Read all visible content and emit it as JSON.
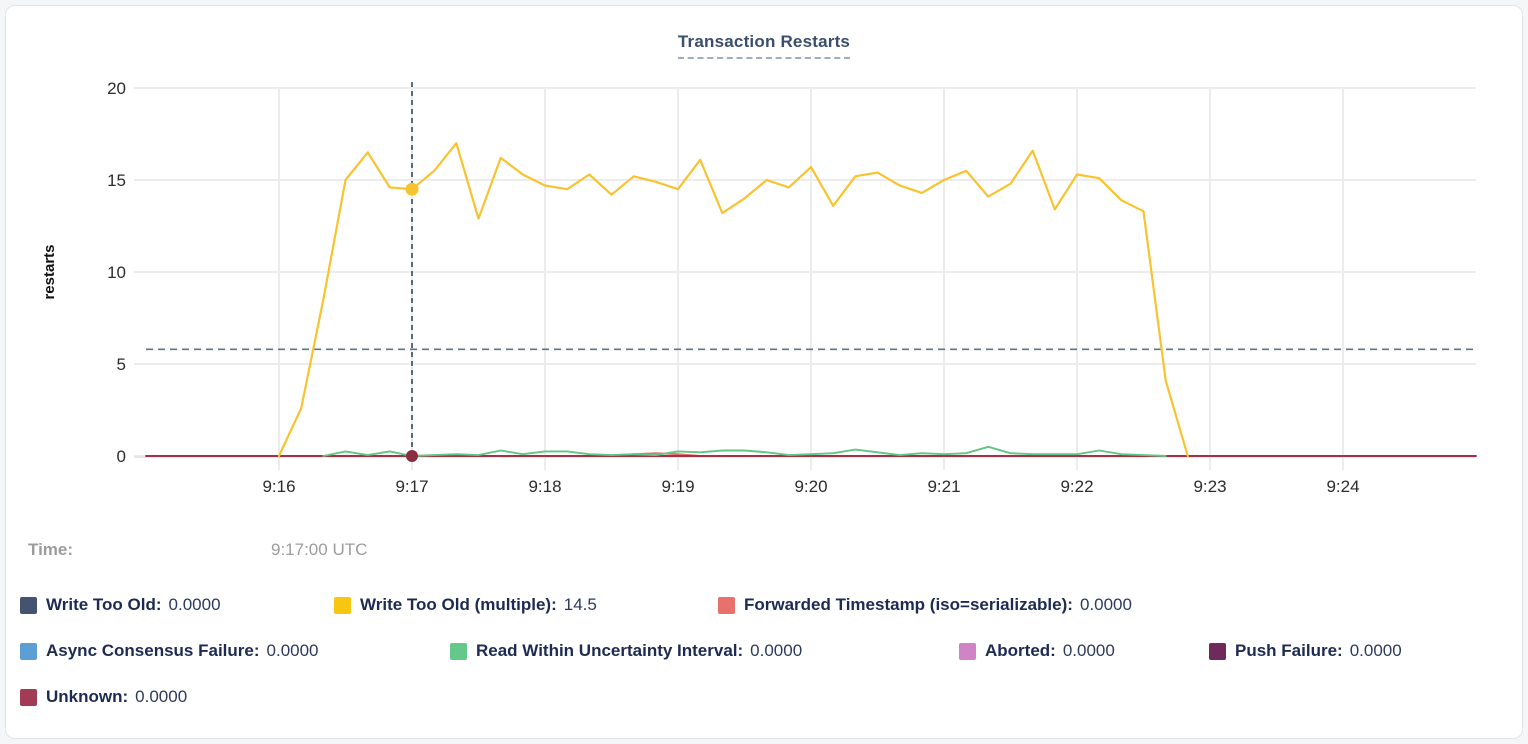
{
  "title": "Transaction Restarts",
  "chart_data": {
    "type": "line",
    "title": "Transaction Restarts",
    "xlabel": "",
    "ylabel": "restarts",
    "ylim": [
      0,
      20
    ],
    "y_ticks": [
      0,
      5,
      10,
      15,
      20
    ],
    "x_ticks": [
      "9:16",
      "9:17",
      "9:18",
      "9:19",
      "9:20",
      "9:21",
      "9:22",
      "9:23",
      "9:24"
    ],
    "x_domain": [
      "9:15:00",
      "9:25:00"
    ],
    "grid": true,
    "avg_line_value": 5.8,
    "crosshair": {
      "time": "9:17:00",
      "highlight_value": 14.5,
      "zero_dot_value": 0,
      "line_color": "#2e4d68",
      "dot_color": "#f9c32f",
      "zero_dot_color": "#8b2d42"
    },
    "avg_line_color": "#5a7590",
    "series": [
      {
        "name": "Forwarded Timestamp (iso=serializable)",
        "color": "#e8706b",
        "start": "9:18:30",
        "interval_s": 10,
        "values": [
          0,
          0.1,
          0.15,
          0.1,
          0
        ]
      },
      {
        "name": "Unknown",
        "color": "#9e3349",
        "start": "9:15:00",
        "interval_s": 600,
        "values": [
          0,
          0
        ]
      },
      {
        "name": "Read Within Uncertainty Interval",
        "color": "#62c584",
        "start": "9:16:20",
        "interval_s": 10,
        "values": [
          0,
          0.25,
          0.05,
          0.25,
          0,
          0.05,
          0.1,
          0.05,
          0.3,
          0.1,
          0.25,
          0.25,
          0.1,
          0.05,
          0.1,
          0.05,
          0.25,
          0.2,
          0.3,
          0.3,
          0.2,
          0.05,
          0.1,
          0.15,
          0.35,
          0.2,
          0.05,
          0.15,
          0.1,
          0.15,
          0.5,
          0.15,
          0.1,
          0.1,
          0.1,
          0.3,
          0.1,
          0.05,
          0
        ]
      },
      {
        "name": "Write Too Old (multiple)",
        "color": "#f9c32f",
        "start": "9:16:00",
        "interval_s": 10,
        "values": [
          0,
          2.6,
          8.5,
          15.0,
          16.5,
          14.6,
          14.5,
          15.5,
          17.0,
          12.9,
          16.2,
          15.3,
          14.7,
          14.5,
          15.3,
          14.2,
          15.2,
          14.9,
          14.5,
          16.1,
          13.2,
          14.0,
          15.0,
          14.6,
          15.7,
          13.6,
          15.2,
          15.4,
          14.7,
          14.3,
          15.0,
          15.5,
          14.1,
          14.8,
          16.6,
          13.4,
          15.3,
          15.1,
          13.9,
          13.3,
          4.1,
          0
        ]
      }
    ]
  },
  "legend": {
    "time_label": "Time:",
    "time_value": "9:17:00 UTC",
    "rows": [
      [
        {
          "label": "Write Too Old:",
          "value": "0.0000",
          "color": "#44536f"
        },
        {
          "label": "Write Too Old (multiple):",
          "value": "14.5",
          "color": "#f9c513"
        },
        {
          "label": "Forwarded Timestamp (iso=serializable):",
          "value": "0.0000",
          "color": "#e8716c"
        }
      ],
      [
        {
          "label": "Async Consensus Failure:",
          "value": "0.0000",
          "color": "#5d9fd5"
        },
        {
          "label": "Read Within Uncertainty Interval:",
          "value": "0.0000",
          "color": "#63c889"
        },
        {
          "label": "Aborted:",
          "value": "0.0000",
          "color": "#d084c5"
        },
        {
          "label": "Push Failure:",
          "value": "0.0000",
          "color": "#6e2a59"
        }
      ],
      [
        {
          "label": "Unknown:",
          "value": "0.0000",
          "color": "#a23b55"
        }
      ]
    ]
  },
  "colors": {
    "grid": "#ececec",
    "axis_text": "#2c2c2c",
    "title": "#3b4e6d"
  }
}
